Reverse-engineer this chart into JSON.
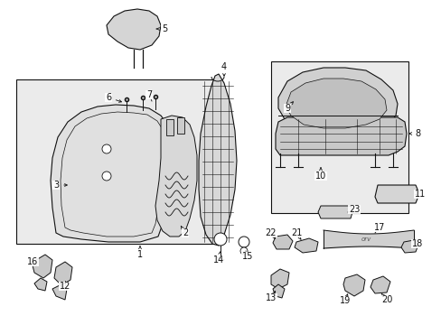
{
  "bg_color": "#ffffff",
  "lc": "#111111",
  "box_fill": "#ebebeb",
  "part_fill": "#e0e0e0",
  "part_fill2": "#d0d0d0",
  "white": "#ffffff"
}
